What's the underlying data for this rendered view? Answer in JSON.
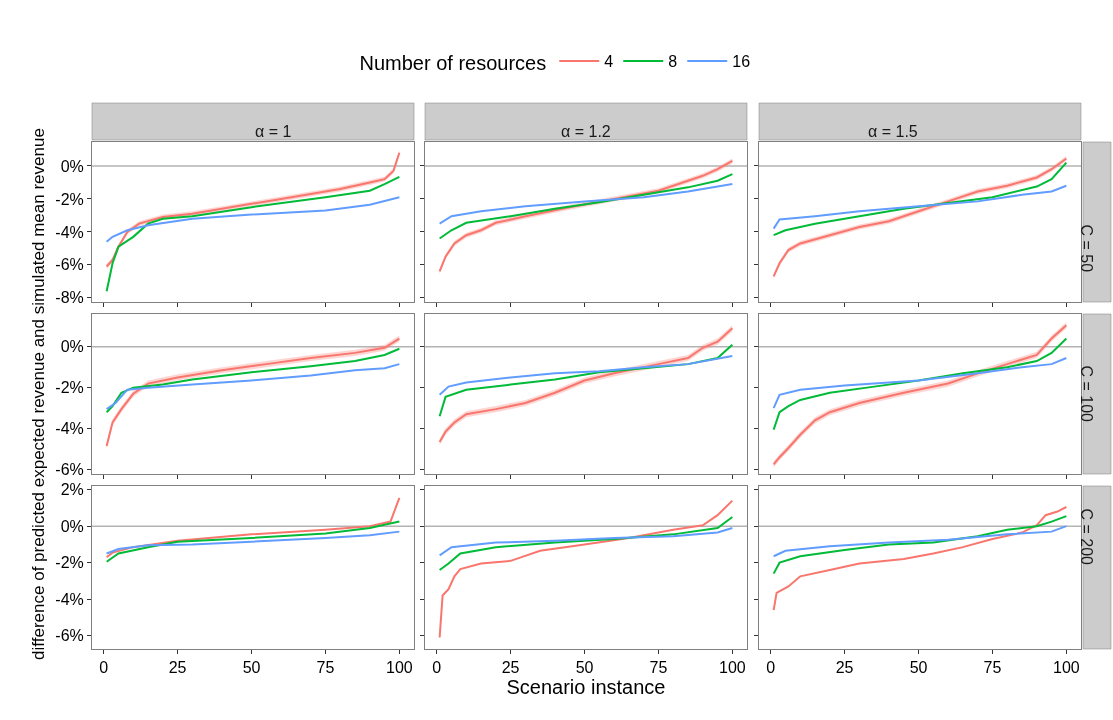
{
  "chart_data": [
    {
      "type": "line",
      "title": "α = 1",
      "legend": "top",
      "legend_title": "Number of resources",
      "tick_labels": "y",
      "xlim": [
        -3.95,
        104.95
      ],
      "xticks": [
        {
          "value": 0,
          "label": null
        },
        {
          "value": 25,
          "label": null
        },
        {
          "value": 50,
          "label": null
        },
        {
          "value": 75,
          "label": null
        },
        {
          "value": 100,
          "label": null
        }
      ],
      "ylim": [
        -8.25,
        1.45
      ],
      "yticks": [
        {
          "value": 0,
          "label": "0%"
        },
        {
          "value": -2,
          "label": "-2%"
        },
        {
          "value": -4,
          "label": "-4%"
        },
        {
          "value": -6,
          "label": "-6%"
        },
        {
          "value": -8,
          "label": "-8%"
        }
      ],
      "ref_lines": [
        {
          "axis": "y",
          "value": 0,
          "color": "#b3b3b3"
        }
      ],
      "series": [
        {
          "name": "4",
          "color": "#f8766d",
          "x": [
            1,
            3,
            5,
            8,
            12,
            20,
            30,
            40,
            50,
            60,
            70,
            80,
            90,
            95,
            98,
            100
          ],
          "values": [
            -6.1,
            -5.7,
            -4.9,
            -4.0,
            -3.5,
            -3.1,
            -2.9,
            -2.6,
            -2.3,
            -2.0,
            -1.7,
            -1.4,
            -1.0,
            -0.8,
            -0.3,
            0.8
          ],
          "lower": [
            -6.25,
            -5.85,
            -5.05,
            -4.15,
            -3.65,
            -3.25,
            -3.05,
            -2.75,
            -2.45,
            -2.15,
            -1.85,
            -1.55,
            -1.15,
            -0.95,
            -0.45,
            0.65
          ],
          "upper": [
            -5.95,
            -5.55,
            -4.75,
            -3.85,
            -3.35,
            -2.95,
            -2.75,
            -2.45,
            -2.15,
            -1.85,
            -1.55,
            -1.25,
            -0.85,
            -0.65,
            -0.15,
            0.95
          ]
        },
        {
          "name": "8",
          "color": "#00ba38",
          "x": [
            1,
            3,
            5,
            10,
            15,
            20,
            30,
            50,
            75,
            90,
            95,
            100
          ],
          "values": [
            -7.6,
            -5.9,
            -4.9,
            -4.3,
            -3.5,
            -3.2,
            -3.05,
            -2.5,
            -1.9,
            -1.5,
            -1.1,
            -0.67
          ]
        },
        {
          "name": "16",
          "color": "#619cff",
          "x": [
            1,
            3,
            8,
            15,
            30,
            50,
            75,
            90,
            100
          ],
          "values": [
            -4.6,
            -4.3,
            -3.9,
            -3.6,
            -3.2,
            -2.95,
            -2.7,
            -2.35,
            -1.9
          ]
        }
      ]
    },
    {
      "type": "line",
      "title": "α = 1.2",
      "tick_labels": false,
      "xlim": [
        -3.95,
        104.95
      ],
      "xticks": [
        {
          "value": 0,
          "label": null
        },
        {
          "value": 25,
          "label": null
        },
        {
          "value": 50,
          "label": null
        },
        {
          "value": 75,
          "label": null
        },
        {
          "value": 100,
          "label": null
        }
      ],
      "ylim": [
        -8.25,
        1.45
      ],
      "yticks": [
        {
          "value": 0,
          "label": null
        },
        {
          "value": -2,
          "label": null
        },
        {
          "value": -4,
          "label": null
        },
        {
          "value": -6,
          "label": null
        },
        {
          "value": -8,
          "label": null
        }
      ],
      "ref_lines": [
        {
          "axis": "y",
          "value": 0,
          "color": "#b3b3b3"
        }
      ],
      "series": [
        {
          "color": "#f8766d",
          "x": [
            1,
            3,
            6,
            10,
            15,
            20,
            30,
            45,
            60,
            75,
            90,
            95,
            100
          ],
          "values": [
            -6.4,
            -5.5,
            -4.7,
            -4.2,
            -3.9,
            -3.45,
            -3.05,
            -2.5,
            -2.0,
            -1.5,
            -0.6,
            -0.2,
            0.3
          ],
          "lower": [
            -6.55,
            -5.65,
            -4.85,
            -4.35,
            -4.05,
            -3.6,
            -3.2,
            -2.65,
            -2.15,
            -1.65,
            -0.75,
            -0.35,
            0.15
          ],
          "upper": [
            -6.25,
            -5.35,
            -4.55,
            -4.05,
            -3.75,
            -3.3,
            -2.9,
            -2.35,
            -1.85,
            -1.35,
            -0.45,
            -0.05,
            0.45
          ]
        },
        {
          "color": "#00ba38",
          "x": [
            1,
            5,
            10,
            25,
            40,
            55,
            70,
            85,
            95,
            100
          ],
          "values": [
            -4.4,
            -3.9,
            -3.45,
            -3.05,
            -2.6,
            -2.2,
            -1.75,
            -1.3,
            -0.9,
            -0.5
          ]
        },
        {
          "color": "#619cff",
          "x": [
            1,
            5,
            15,
            30,
            50,
            70,
            85,
            100
          ],
          "values": [
            -3.5,
            -3.05,
            -2.75,
            -2.45,
            -2.15,
            -1.9,
            -1.55,
            -1.1
          ]
        }
      ]
    },
    {
      "type": "line",
      "title": "α = 1.5",
      "annotations": [
        "C = 50"
      ],
      "tick_labels": false,
      "xlim": [
        -3.95,
        104.95
      ],
      "xticks": [
        {
          "value": 0,
          "label": null
        },
        {
          "value": 25,
          "label": null
        },
        {
          "value": 50,
          "label": null
        },
        {
          "value": 75,
          "label": null
        },
        {
          "value": 100,
          "label": null
        }
      ],
      "ylim": [
        -8.25,
        1.45
      ],
      "yticks": [
        {
          "value": 0,
          "label": null
        },
        {
          "value": -2,
          "label": null
        },
        {
          "value": -4,
          "label": null
        },
        {
          "value": -6,
          "label": null
        },
        {
          "value": -8,
          "label": null
        }
      ],
      "ref_lines": [
        {
          "axis": "y",
          "value": 0,
          "color": "#b3b3b3"
        }
      ],
      "series": [
        {
          "color": "#f8766d",
          "x": [
            1,
            3,
            6,
            10,
            20,
            30,
            40,
            50,
            60,
            70,
            80,
            90,
            95,
            100
          ],
          "values": [
            -6.7,
            -5.9,
            -5.1,
            -4.7,
            -4.2,
            -3.7,
            -3.35,
            -2.75,
            -2.15,
            -1.55,
            -1.2,
            -0.7,
            -0.2,
            0.45
          ],
          "lower": [
            -6.85,
            -6.05,
            -5.25,
            -4.85,
            -4.35,
            -3.85,
            -3.5,
            -2.9,
            -2.3,
            -1.7,
            -1.35,
            -0.85,
            -0.35,
            0.3
          ],
          "upper": [
            -6.55,
            -5.75,
            -4.95,
            -4.55,
            -4.05,
            -3.55,
            -3.2,
            -2.6,
            -2.0,
            -1.4,
            -1.05,
            -0.55,
            -0.05,
            0.6
          ]
        },
        {
          "color": "#00ba38",
          "x": [
            1,
            5,
            15,
            30,
            45,
            60,
            75,
            90,
            95,
            100
          ],
          "values": [
            -4.2,
            -3.9,
            -3.5,
            -3.05,
            -2.6,
            -2.25,
            -1.9,
            -1.25,
            -0.8,
            0.2
          ]
        },
        {
          "color": "#619cff",
          "x": [
            1,
            3,
            15,
            30,
            50,
            70,
            85,
            95,
            100
          ],
          "values": [
            -3.8,
            -3.25,
            -3.05,
            -2.75,
            -2.45,
            -2.15,
            -1.75,
            -1.55,
            -1.2
          ]
        }
      ]
    },
    {
      "type": "line",
      "ylabel": "difference of predicted expected revenue and simulated mean revenue",
      "tick_labels": "y",
      "xlim": [
        -3.95,
        104.95
      ],
      "xticks": [
        {
          "value": 0,
          "label": null
        },
        {
          "value": 25,
          "label": null
        },
        {
          "value": 50,
          "label": null
        },
        {
          "value": 75,
          "label": null
        },
        {
          "value": 100,
          "label": null
        }
      ],
      "ylim": [
        -6.22,
        1.6
      ],
      "yticks": [
        {
          "value": 0,
          "label": "0%"
        },
        {
          "value": -2,
          "label": "-2%"
        },
        {
          "value": -4,
          "label": "-4%"
        },
        {
          "value": -6,
          "label": "-6%"
        }
      ],
      "ref_lines": [
        {
          "axis": "y",
          "value": 0,
          "color": "#b3b3b3"
        }
      ],
      "series": [
        {
          "color": "#f8766d",
          "x": [
            1,
            3,
            6,
            10,
            15,
            25,
            40,
            55,
            70,
            85,
            95,
            100
          ],
          "values": [
            -4.85,
            -3.7,
            -3.05,
            -2.3,
            -1.8,
            -1.5,
            -1.15,
            -0.85,
            -0.55,
            -0.3,
            -0.05,
            0.4
          ],
          "lower": [
            -5.0,
            -3.85,
            -3.2,
            -2.45,
            -1.95,
            -1.65,
            -1.3,
            -1.0,
            -0.7,
            -0.45,
            -0.2,
            0.25
          ],
          "upper": [
            -4.7,
            -3.55,
            -2.9,
            -2.15,
            -1.65,
            -1.35,
            -1.0,
            -0.7,
            -0.4,
            -0.15,
            0.1,
            0.55
          ]
        },
        {
          "color": "#00ba38",
          "x": [
            1,
            3,
            6,
            10,
            20,
            30,
            50,
            70,
            85,
            95,
            100
          ],
          "values": [
            -3.2,
            -2.9,
            -2.25,
            -2.0,
            -1.85,
            -1.6,
            -1.25,
            -0.95,
            -0.7,
            -0.4,
            -0.1
          ]
        },
        {
          "color": "#619cff",
          "x": [
            1,
            4,
            8,
            15,
            30,
            50,
            70,
            85,
            95,
            100
          ],
          "values": [
            -3.05,
            -2.75,
            -2.1,
            -2.0,
            -1.85,
            -1.65,
            -1.4,
            -1.15,
            -1.05,
            -0.85
          ]
        }
      ]
    },
    {
      "type": "line",
      "tick_labels": false,
      "xlim": [
        -3.95,
        104.95
      ],
      "xticks": [
        {
          "value": 0,
          "label": null
        },
        {
          "value": 25,
          "label": null
        },
        {
          "value": 50,
          "label": null
        },
        {
          "value": 75,
          "label": null
        },
        {
          "value": 100,
          "label": null
        }
      ],
      "ylim": [
        -6.22,
        1.6
      ],
      "yticks": [
        {
          "value": 0,
          "label": null
        },
        {
          "value": -2,
          "label": null
        },
        {
          "value": -4,
          "label": null
        },
        {
          "value": -6,
          "label": null
        }
      ],
      "ref_lines": [
        {
          "axis": "y",
          "value": 0,
          "color": "#b3b3b3"
        }
      ],
      "series": [
        {
          "color": "#f8766d",
          "x": [
            1,
            3,
            6,
            10,
            20,
            30,
            40,
            50,
            60,
            75,
            85,
            90,
            95,
            100
          ],
          "values": [
            -4.65,
            -4.15,
            -3.7,
            -3.3,
            -3.05,
            -2.75,
            -2.25,
            -1.65,
            -1.3,
            -0.85,
            -0.55,
            -0.05,
            0.25,
            0.9
          ],
          "lower": [
            -4.8,
            -4.3,
            -3.85,
            -3.45,
            -3.2,
            -2.9,
            -2.4,
            -1.8,
            -1.45,
            -1.0,
            -0.7,
            -0.2,
            0.1,
            0.75
          ],
          "upper": [
            -4.5,
            -4.0,
            -3.55,
            -3.15,
            -2.9,
            -2.6,
            -2.1,
            -1.5,
            -1.15,
            -0.7,
            -0.4,
            0.1,
            0.4,
            1.05
          ]
        },
        {
          "color": "#00ba38",
          "x": [
            1,
            3,
            10,
            25,
            40,
            55,
            70,
            85,
            95,
            100
          ],
          "values": [
            -3.4,
            -2.45,
            -2.1,
            -1.85,
            -1.6,
            -1.25,
            -1.05,
            -0.85,
            -0.55,
            0.1
          ]
        },
        {
          "color": "#619cff",
          "x": [
            1,
            4,
            10,
            25,
            40,
            55,
            70,
            85,
            100
          ],
          "values": [
            -2.35,
            -1.95,
            -1.75,
            -1.5,
            -1.3,
            -1.2,
            -1.0,
            -0.85,
            -0.45
          ]
        }
      ]
    },
    {
      "type": "line",
      "annotations": [
        "C = 100"
      ],
      "tick_labels": false,
      "xlim": [
        -3.95,
        104.95
      ],
      "xticks": [
        {
          "value": 0,
          "label": null
        },
        {
          "value": 25,
          "label": null
        },
        {
          "value": 50,
          "label": null
        },
        {
          "value": 75,
          "label": null
        },
        {
          "value": 100,
          "label": null
        }
      ],
      "ylim": [
        -6.22,
        1.6
      ],
      "yticks": [
        {
          "value": 0,
          "label": null
        },
        {
          "value": -2,
          "label": null
        },
        {
          "value": -4,
          "label": null
        },
        {
          "value": -6,
          "label": null
        }
      ],
      "ref_lines": [
        {
          "axis": "y",
          "value": 0,
          "color": "#b3b3b3"
        }
      ],
      "series": [
        {
          "color": "#f8766d",
          "x": [
            1,
            3,
            6,
            10,
            15,
            20,
            30,
            45,
            60,
            70,
            80,
            90,
            95,
            100
          ],
          "values": [
            -5.75,
            -5.4,
            -4.95,
            -4.3,
            -3.6,
            -3.2,
            -2.75,
            -2.25,
            -1.8,
            -1.3,
            -0.85,
            -0.4,
            0.4,
            1.05
          ],
          "lower": [
            -5.9,
            -5.55,
            -5.1,
            -4.45,
            -3.75,
            -3.35,
            -2.9,
            -2.4,
            -1.95,
            -1.45,
            -1.0,
            -0.55,
            0.25,
            0.9
          ],
          "upper": [
            -5.6,
            -5.25,
            -4.8,
            -4.15,
            -3.45,
            -3.05,
            -2.6,
            -2.1,
            -1.65,
            -1.15,
            -0.7,
            -0.25,
            0.55,
            1.2
          ]
        },
        {
          "color": "#00ba38",
          "x": [
            1,
            3,
            6,
            10,
            20,
            35,
            50,
            65,
            80,
            90,
            95,
            100
          ],
          "values": [
            -4.05,
            -3.2,
            -2.9,
            -2.6,
            -2.25,
            -1.95,
            -1.65,
            -1.3,
            -1.0,
            -0.7,
            -0.3,
            0.4
          ]
        },
        {
          "color": "#619cff",
          "x": [
            1,
            3,
            10,
            25,
            50,
            70,
            85,
            95,
            100
          ],
          "values": [
            -3.0,
            -2.35,
            -2.1,
            -1.9,
            -1.65,
            -1.3,
            -1.0,
            -0.85,
            -0.55
          ]
        }
      ]
    },
    {
      "type": "line",
      "xlim": [
        -3.95,
        104.95
      ],
      "xticks": [
        0,
        25,
        50,
        75,
        100
      ],
      "ylim": [
        -6.73,
        2.2
      ],
      "yticks": [
        {
          "value": 2,
          "label": "2%"
        },
        {
          "value": 0,
          "label": "0%"
        },
        {
          "value": -2,
          "label": "-2%"
        },
        {
          "value": -4,
          "label": "-4%"
        },
        {
          "value": -6,
          "label": "-6%"
        }
      ],
      "ref_lines": [
        {
          "axis": "y",
          "value": 0,
          "color": "#b3b3b3"
        }
      ],
      "series": [
        {
          "color": "#f8766d",
          "x": [
            1,
            3,
            10,
            25,
            50,
            75,
            90,
            97,
            100
          ],
          "values": [
            -1.7,
            -1.45,
            -1.15,
            -0.8,
            -0.45,
            -0.2,
            0.0,
            0.25,
            1.55
          ]
        },
        {
          "color": "#00ba38",
          "x": [
            1,
            5,
            15,
            25,
            50,
            75,
            90,
            100
          ],
          "values": [
            -1.95,
            -1.5,
            -1.15,
            -0.85,
            -0.65,
            -0.4,
            -0.1,
            0.25
          ]
        },
        {
          "color": "#619cff",
          "x": [
            1,
            5,
            15,
            30,
            50,
            75,
            90,
            100
          ],
          "values": [
            -1.5,
            -1.25,
            -1.05,
            -1.0,
            -0.85,
            -0.65,
            -0.5,
            -0.3
          ]
        }
      ]
    },
    {
      "type": "line",
      "xlabel": "Scenario instance",
      "tick_labels": "x",
      "xlim": [
        -3.95,
        104.95
      ],
      "xticks": [
        0,
        25,
        50,
        75,
        100
      ],
      "ylim": [
        -6.73,
        2.2
      ],
      "yticks": [
        {
          "value": 2,
          "label": null
        },
        {
          "value": 0,
          "label": null
        },
        {
          "value": -2,
          "label": null
        },
        {
          "value": -4,
          "label": null
        },
        {
          "value": -6,
          "label": null
        }
      ],
      "ref_lines": [
        {
          "axis": "y",
          "value": 0,
          "color": "#b3b3b3"
        }
      ],
      "series": [
        {
          "color": "#f8766d",
          "x": [
            1,
            2,
            4,
            6,
            8,
            15,
            25,
            35,
            50,
            65,
            80,
            90,
            95,
            100
          ],
          "values": [
            -6.1,
            -3.8,
            -3.45,
            -2.75,
            -2.35,
            -2.05,
            -1.9,
            -1.35,
            -1.0,
            -0.65,
            -0.2,
            0.05,
            0.6,
            1.4
          ]
        },
        {
          "color": "#00ba38",
          "x": [
            1,
            4,
            8,
            20,
            40,
            60,
            80,
            95,
            100
          ],
          "values": [
            -2.4,
            -2.05,
            -1.5,
            -1.15,
            -0.9,
            -0.7,
            -0.45,
            -0.1,
            0.5
          ]
        },
        {
          "color": "#619cff",
          "x": [
            1,
            5,
            20,
            40,
            60,
            80,
            95,
            100
          ],
          "values": [
            -1.6,
            -1.15,
            -0.9,
            -0.8,
            -0.65,
            -0.55,
            -0.35,
            -0.1
          ]
        }
      ]
    },
    {
      "type": "line",
      "annotations": [
        "C = 200"
      ],
      "tick_labels": "x",
      "xlim": [
        -3.95,
        104.95
      ],
      "xticks": [
        0,
        25,
        50,
        75,
        100
      ],
      "ylim": [
        -6.73,
        2.2
      ],
      "yticks": [
        {
          "value": 2,
          "label": null
        },
        {
          "value": 0,
          "label": null
        },
        {
          "value": -2,
          "label": null
        },
        {
          "value": -4,
          "label": null
        },
        {
          "value": -6,
          "label": null
        }
      ],
      "ref_lines": [
        {
          "axis": "y",
          "value": 0,
          "color": "#b3b3b3"
        }
      ],
      "series": [
        {
          "color": "#f8766d",
          "x": [
            1,
            2,
            6,
            10,
            20,
            30,
            45,
            55,
            65,
            75,
            85,
            90,
            93,
            97,
            100
          ],
          "values": [
            -4.6,
            -3.65,
            -3.3,
            -2.75,
            -2.4,
            -2.05,
            -1.8,
            -1.5,
            -1.15,
            -0.7,
            -0.35,
            0.05,
            0.6,
            0.8,
            1.05
          ]
        },
        {
          "color": "#00ba38",
          "x": [
            1,
            3,
            10,
            25,
            40,
            55,
            70,
            80,
            90,
            95,
            100
          ],
          "values": [
            -2.6,
            -2.0,
            -1.65,
            -1.3,
            -1.0,
            -0.9,
            -0.55,
            -0.2,
            0.0,
            0.25,
            0.55
          ]
        },
        {
          "color": "#619cff",
          "x": [
            1,
            5,
            20,
            40,
            60,
            80,
            95,
            100
          ],
          "values": [
            -1.65,
            -1.35,
            -1.1,
            -0.9,
            -0.75,
            -0.45,
            -0.3,
            0.0
          ]
        }
      ]
    }
  ]
}
